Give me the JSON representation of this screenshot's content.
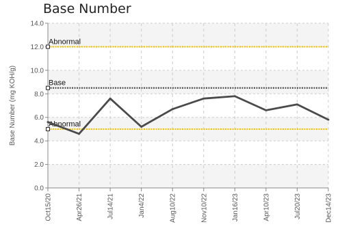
{
  "chart_data": {
    "type": "line",
    "title": "Base Number",
    "xlabel": "",
    "ylabel": "Base Number (mg KOH/g)",
    "ylim": [
      0,
      14
    ],
    "yticks": [
      "0.0",
      "2.0",
      "4.0",
      "6.0",
      "8.0",
      "10.0",
      "12.0",
      "14.0"
    ],
    "categories": [
      "Oct15/20",
      "Apr26/21",
      "Jul14/21",
      "Jan4/22",
      "Aug10/22",
      "Nov10/22",
      "Jan16/23",
      "Apr10/23",
      "Jul20/23",
      "Dec14/23"
    ],
    "series": [
      {
        "values": [
          5.6,
          4.6,
          7.6,
          5.2,
          6.7,
          7.6,
          7.8,
          6.6,
          7.1,
          5.8
        ],
        "color": "#4a4a4a"
      }
    ],
    "reference_lines": [
      {
        "label": "Abnormal",
        "value": 12.0,
        "color": "#f2c100",
        "style": "dotted"
      },
      {
        "label": "Base",
        "value": 8.5,
        "color": "#444444",
        "style": "dotted"
      },
      {
        "label": "Abnormal",
        "value": 5.0,
        "color": "#f2c100",
        "style": "dotted"
      }
    ],
    "grid": true,
    "colors": {
      "band": "#f4f4f4",
      "grid": "#cccccc",
      "axis": "#888888"
    }
  }
}
